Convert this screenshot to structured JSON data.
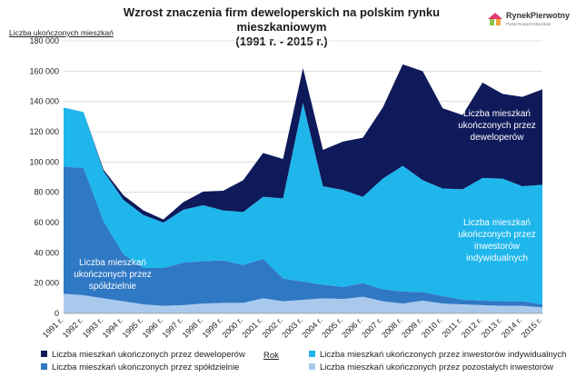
{
  "page": {
    "title_line1": "Wzrost znaczenia firm deweloperskich na polskim rynku mieszkaniowym",
    "title_line2": "(1991 r. - 2015 r.)",
    "logo_name": "RynekPierwotny",
    "logo_sub": "Portal Nowych Mieszkań"
  },
  "chart_data": {
    "type": "area",
    "stacked": true,
    "title": "Wzrost znaczenia firm deweloperskich na polskim rynku mieszkaniowym (1991 r. - 2015 r.)",
    "ylabel": "Liczba ukończonych mieszkań",
    "xlabel": "Rok",
    "ylim": [
      0,
      180000
    ],
    "yticks": [
      0,
      20000,
      40000,
      60000,
      80000,
      100000,
      120000,
      140000,
      160000,
      180000
    ],
    "ytick_labels": [
      "0",
      "20 000",
      "40 000",
      "60 000",
      "80 000",
      "100 000",
      "120 000",
      "140 000",
      "160 000",
      "180 000"
    ],
    "grid": true,
    "legend_position": "bottom",
    "categories": [
      "1991 r.",
      "1992 r.",
      "1993 r.",
      "1994 r.",
      "1995 r.",
      "1996 r.",
      "1997 r.",
      "1998 r.",
      "1999 r.",
      "2000 r.",
      "2001 r.",
      "2002 r.",
      "2003 r.",
      "2004 r.",
      "2005 r.",
      "2006 r.",
      "2007 r.",
      "2008 r.",
      "2009 r.",
      "2010 r.",
      "2011 r.",
      "2012 r.",
      "2013 r.",
      "2014 r.",
      "2015 r."
    ],
    "series": [
      {
        "name": "Liczba mieszkań ukończonych przez pozostałych inwestorów",
        "color": "#a9c9ec",
        "values": [
          13000,
          12000,
          10000,
          8000,
          6000,
          5000,
          5500,
          6500,
          7000,
          7000,
          10000,
          8000,
          9000,
          10000,
          9500,
          11000,
          8000,
          6500,
          8500,
          6500,
          6000,
          5500,
          5000,
          5000,
          4000
        ]
      },
      {
        "name": "Liczba mieszkań ukończonych przez spółdzielnie",
        "color": "#2f78c4",
        "values": [
          84000,
          84000,
          51000,
          31000,
          24000,
          25000,
          28000,
          28000,
          28000,
          25000,
          26000,
          15000,
          12000,
          9000,
          8000,
          9000,
          8000,
          8000,
          5500,
          5000,
          3000,
          3000,
          3000,
          3000,
          2000
        ]
      },
      {
        "name": "Liczba mieszkań ukończonych przez inwestorów indywidualnych",
        "color": "#1fb6ec",
        "values": [
          39000,
          37000,
          33000,
          36000,
          35000,
          30000,
          35000,
          37000,
          33000,
          35000,
          41000,
          53000,
          118000,
          65000,
          64000,
          57000,
          73000,
          83000,
          74000,
          71000,
          73000,
          81000,
          81000,
          76000,
          79000
        ]
      },
      {
        "name": "Liczba mieszkań ukończonych przez deweloperów",
        "color": "#0e1a5a",
        "values": [
          0,
          0,
          1000,
          3000,
          3000,
          2000,
          5000,
          9000,
          13000,
          21000,
          29000,
          26000,
          23000,
          24000,
          32000,
          39000,
          47000,
          67000,
          72000,
          53000,
          49000,
          63000,
          56000,
          59000,
          63000
        ]
      }
    ],
    "annotations": [
      {
        "series": "Liczba mieszkań ukończonych przez deweloperów",
        "lines": [
          "Liczba mieszkań",
          "ukończonych przez",
          "deweloperów"
        ]
      },
      {
        "series": "Liczba mieszkań ukończonych przez inwestorów indywidualnych",
        "lines": [
          "Liczba mieszkań",
          "ukończonych przez",
          "inwestorów",
          "indywidualnych"
        ]
      },
      {
        "series": "Liczba mieszkań ukończonych przez spółdzielnie",
        "lines": [
          "Liczba mieszkań",
          "ukończonych przez",
          "spółdzielnie"
        ]
      }
    ]
  },
  "legend": {
    "items": [
      {
        "label": "Liczba mieszkań ukończonych przez deweloperów",
        "color": "#0e1a5a"
      },
      {
        "label": "Liczba mieszkań ukończonych przez inwestorów indywidualnych",
        "color": "#1fb6ec"
      },
      {
        "label": "Liczba mieszkań ukończonych przez spółdzielnie",
        "color": "#2f78c4"
      },
      {
        "label": "Liczba mieszkań ukończonych przez pozostałych inwestorów",
        "color": "#a9c9ec"
      }
    ]
  }
}
